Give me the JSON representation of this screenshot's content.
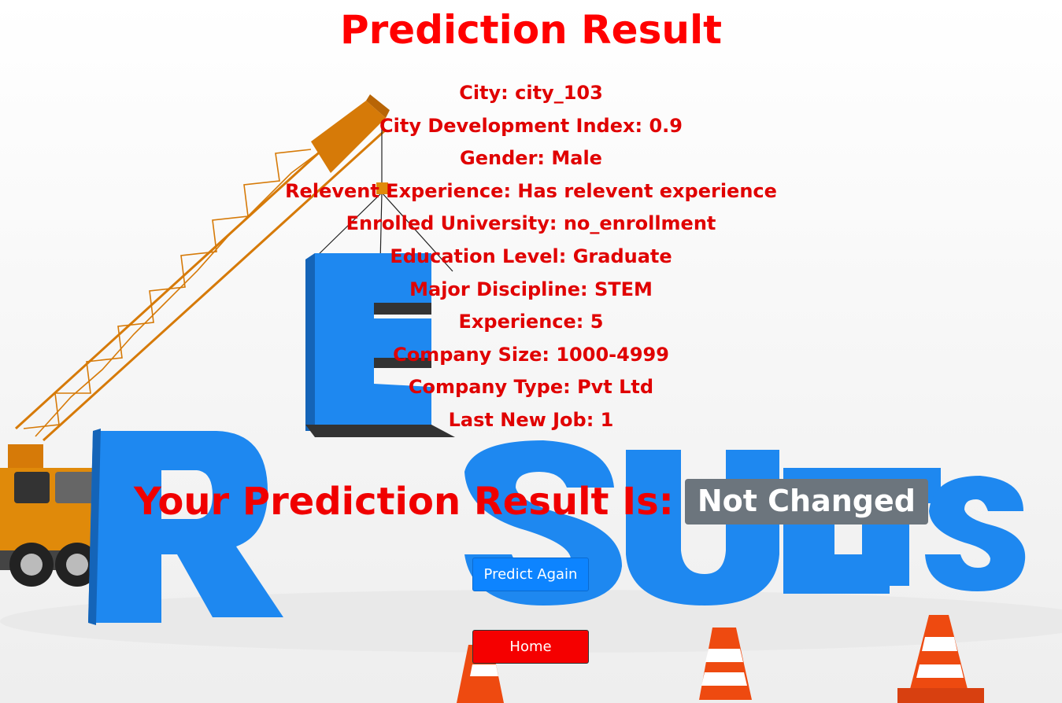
{
  "page": {
    "title": "Prediction Result"
  },
  "fields": [
    {
      "label": "City",
      "value": "city_103"
    },
    {
      "label": "City Development Index",
      "value": "0.9"
    },
    {
      "label": "Gender",
      "value": "Male"
    },
    {
      "label": "Relevent Experience",
      "value": "Has relevent experience"
    },
    {
      "label": "Enrolled University",
      "value": "no_enrollment"
    },
    {
      "label": "Education Level",
      "value": "Graduate"
    },
    {
      "label": "Major Discipline",
      "value": "STEM"
    },
    {
      "label": "Experience",
      "value": "5"
    },
    {
      "label": "Company Size",
      "value": "1000-4999"
    },
    {
      "label": "Company Type",
      "value": "Pvt Ltd"
    },
    {
      "label": "Last New Job",
      "value": "1"
    }
  ],
  "result": {
    "label": "Your Prediction Result Is:",
    "value": "Not Changed"
  },
  "buttons": {
    "predict_again": "Predict Again",
    "home": "Home"
  },
  "colors": {
    "text_red": "#ff0000",
    "badge_gray": "#6c757d",
    "button_blue": "#0d84ff",
    "button_red": "#f50000",
    "letters_blue": "#1e88f0",
    "crane_orange": "#e07f0a"
  },
  "background": {
    "icon": "results-crane-illustration"
  }
}
